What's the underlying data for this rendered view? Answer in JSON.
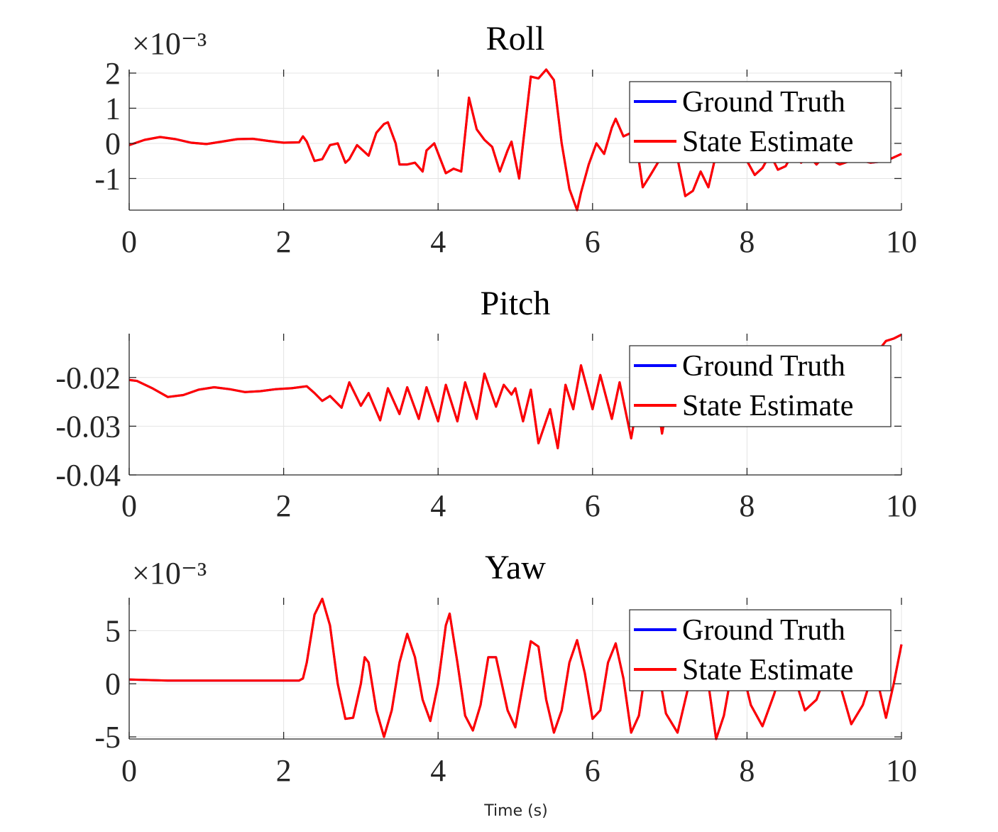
{
  "figure": {
    "xlabel": "Time (s)",
    "legend": [
      "Ground Truth",
      "State Estimate"
    ],
    "colors": {
      "ground_truth": "#0000ff",
      "state_estimate": "#ff0000",
      "axis": "#262626",
      "grid": "#e4e4e4"
    }
  },
  "chart_data": [
    {
      "type": "line",
      "title": "Roll",
      "ylabel": "",
      "exponent_label": "×10⁻³",
      "xlim": [
        0,
        10
      ],
      "ylim": [
        -1.9,
        2.1
      ],
      "xticks": [
        0,
        2,
        4,
        6,
        8,
        10
      ],
      "xtick_labels": [
        "0",
        "2",
        "4",
        "6",
        "8",
        "10"
      ],
      "yticks": [
        -1,
        0,
        1,
        2
      ],
      "ytick_labels": [
        "-1",
        "0",
        "1",
        "2"
      ],
      "grid": true,
      "legend_position": "top-right",
      "series": [
        {
          "name": "Ground Truth",
          "color": "#0000ff"
        },
        {
          "name": "State Estimate",
          "color": "#ff0000"
        }
      ],
      "x": [
        0,
        0.2,
        0.4,
        0.6,
        0.8,
        1.0,
        1.2,
        1.4,
        1.6,
        1.8,
        2.0,
        2.2,
        2.25,
        2.3,
        2.4,
        2.5,
        2.6,
        2.7,
        2.8,
        2.85,
        2.95,
        3.1,
        3.2,
        3.3,
        3.35,
        3.45,
        3.5,
        3.6,
        3.7,
        3.8,
        3.85,
        3.95,
        4.1,
        4.2,
        4.3,
        4.4,
        4.5,
        4.6,
        4.7,
        4.8,
        4.9,
        4.95,
        5.05,
        5.1,
        5.2,
        5.3,
        5.4,
        5.5,
        5.6,
        5.7,
        5.8,
        5.85,
        5.95,
        6.05,
        6.15,
        6.25,
        6.3,
        6.4,
        6.5,
        6.6,
        6.65,
        6.75,
        6.9,
        7.0,
        7.05,
        7.2,
        7.3,
        7.4,
        7.5,
        7.6,
        7.7,
        7.8,
        7.9,
        8.0,
        8.1,
        8.2,
        8.3,
        8.4,
        8.5,
        8.6,
        8.7,
        8.8,
        8.9,
        9.0,
        9.2,
        9.4,
        9.6,
        9.8,
        10.0
      ],
      "y": [
        -0.05,
        0.1,
        0.18,
        0.12,
        0.02,
        -0.02,
        0.05,
        0.12,
        0.13,
        0.07,
        0.02,
        0.03,
        0.2,
        0.05,
        -0.5,
        -0.45,
        -0.05,
        0.0,
        -0.55,
        -0.45,
        -0.05,
        -0.35,
        0.3,
        0.55,
        0.6,
        0.0,
        -0.6,
        -0.6,
        -0.55,
        -0.8,
        -0.2,
        0.0,
        -0.85,
        -0.72,
        -0.8,
        1.3,
        0.4,
        0.1,
        -0.1,
        -0.8,
        -0.2,
        0.05,
        -1.0,
        0.0,
        1.9,
        1.85,
        2.1,
        1.8,
        0.0,
        -1.3,
        -1.9,
        -1.4,
        -0.6,
        0.0,
        -0.3,
        0.45,
        0.7,
        0.2,
        0.3,
        -0.5,
        -1.25,
        -0.9,
        -0.35,
        0.3,
        0.1,
        -1.5,
        -1.35,
        -0.8,
        -1.25,
        -0.3,
        -0.1,
        0.2,
        0.1,
        -0.5,
        -0.9,
        -0.7,
        -0.3,
        -0.75,
        -0.65,
        -0.25,
        -0.55,
        -0.35,
        -0.6,
        -0.35,
        -0.6,
        -0.45,
        -0.55,
        -0.5,
        -0.3
      ]
    },
    {
      "type": "line",
      "title": "Pitch",
      "ylabel": "",
      "exponent_label": "",
      "xlim": [
        0,
        10
      ],
      "ylim": [
        -0.04,
        -0.011
      ],
      "xticks": [
        0,
        2,
        4,
        6,
        8,
        10
      ],
      "xtick_labels": [
        "0",
        "2",
        "4",
        "6",
        "8",
        "10"
      ],
      "yticks": [
        -0.04,
        -0.03,
        -0.02
      ],
      "ytick_labels": [
        "-0.04",
        "-0.03",
        "-0.02"
      ],
      "grid": true,
      "legend_position": "top-right",
      "series": [
        {
          "name": "Ground Truth",
          "color": "#0000ff"
        },
        {
          "name": "State Estimate",
          "color": "#ff0000"
        }
      ],
      "x": [
        0,
        0.1,
        0.3,
        0.5,
        0.7,
        0.9,
        1.1,
        1.3,
        1.5,
        1.7,
        1.9,
        2.1,
        2.2,
        2.3,
        2.4,
        2.5,
        2.6,
        2.75,
        2.85,
        3.0,
        3.1,
        3.25,
        3.35,
        3.5,
        3.6,
        3.75,
        3.85,
        4.0,
        4.1,
        4.25,
        4.35,
        4.5,
        4.6,
        4.75,
        4.85,
        4.95,
        5.0,
        5.1,
        5.2,
        5.3,
        5.45,
        5.55,
        5.65,
        5.75,
        5.85,
        6.0,
        6.1,
        6.25,
        6.35,
        6.5,
        6.6,
        6.7,
        6.8,
        6.9,
        7.0,
        7.1,
        7.2,
        7.3,
        7.4,
        7.5,
        7.6,
        7.7,
        7.8,
        7.9,
        8.0,
        8.1,
        8.2,
        8.3,
        8.4,
        8.5,
        8.6,
        8.7,
        8.8,
        8.9,
        9.0,
        9.1,
        9.2,
        9.3,
        9.4,
        9.5,
        9.6,
        9.7,
        9.8,
        9.9,
        10.0
      ],
      "y": [
        -0.0205,
        -0.0207,
        -0.0222,
        -0.024,
        -0.0236,
        -0.0225,
        -0.022,
        -0.0224,
        -0.023,
        -0.0228,
        -0.0224,
        -0.0222,
        -0.022,
        -0.0218,
        -0.0232,
        -0.0248,
        -0.0238,
        -0.0262,
        -0.021,
        -0.0258,
        -0.0232,
        -0.0288,
        -0.0222,
        -0.0275,
        -0.022,
        -0.0285,
        -0.022,
        -0.029,
        -0.0215,
        -0.029,
        -0.021,
        -0.0285,
        -0.0192,
        -0.026,
        -0.0215,
        -0.0235,
        -0.0222,
        -0.029,
        -0.0225,
        -0.0335,
        -0.0265,
        -0.0345,
        -0.0215,
        -0.0265,
        -0.0175,
        -0.0265,
        -0.0195,
        -0.0285,
        -0.021,
        -0.0325,
        -0.0235,
        -0.029,
        -0.021,
        -0.0315,
        -0.0225,
        -0.025,
        -0.0235,
        -0.026,
        -0.024,
        -0.025,
        -0.0225,
        -0.024,
        -0.0215,
        -0.0235,
        -0.0215,
        -0.022,
        -0.021,
        -0.0225,
        -0.0205,
        -0.0215,
        -0.0195,
        -0.0205,
        -0.0185,
        -0.0195,
        -0.0178,
        -0.0188,
        -0.016,
        -0.0172,
        -0.0148,
        -0.0158,
        -0.0138,
        -0.0145,
        -0.0125,
        -0.012,
        -0.0112
      ]
    },
    {
      "type": "line",
      "title": "Yaw",
      "ylabel": "",
      "exponent_label": "×10⁻³",
      "xlim": [
        0,
        10
      ],
      "ylim": [
        -5.2,
        8.1
      ],
      "xticks": [
        0,
        2,
        4,
        6,
        8,
        10
      ],
      "xtick_labels": [
        "0",
        "2",
        "4",
        "6",
        "8",
        "10"
      ],
      "yticks": [
        -5,
        0,
        5
      ],
      "ytick_labels": [
        "-5",
        "0",
        "5"
      ],
      "grid": true,
      "legend_position": "top-right",
      "series": [
        {
          "name": "Ground Truth",
          "color": "#0000ff"
        },
        {
          "name": "State Estimate",
          "color": "#ff0000"
        }
      ],
      "x": [
        0,
        0.5,
        1.0,
        1.5,
        2.0,
        2.2,
        2.25,
        2.3,
        2.4,
        2.5,
        2.6,
        2.7,
        2.8,
        2.9,
        3.0,
        3.05,
        3.1,
        3.2,
        3.3,
        3.4,
        3.5,
        3.6,
        3.7,
        3.8,
        3.9,
        4.0,
        4.1,
        4.15,
        4.25,
        4.35,
        4.45,
        4.55,
        4.65,
        4.75,
        4.9,
        5.0,
        5.1,
        5.2,
        5.3,
        5.4,
        5.5,
        5.6,
        5.7,
        5.8,
        5.9,
        6.0,
        6.1,
        6.2,
        6.3,
        6.4,
        6.5,
        6.6,
        6.7,
        6.8,
        6.95,
        7.1,
        7.25,
        7.4,
        7.5,
        7.6,
        7.7,
        7.8,
        7.9,
        8.05,
        8.2,
        8.35,
        8.5,
        8.6,
        8.75,
        8.9,
        9.05,
        9.2,
        9.35,
        9.5,
        9.65,
        9.8,
        9.9,
        10.0
      ],
      "y": [
        0.4,
        0.3,
        0.3,
        0.3,
        0.3,
        0.3,
        0.5,
        2.0,
        6.5,
        8.0,
        5.5,
        0.0,
        -3.3,
        -3.2,
        0.0,
        2.5,
        2.0,
        -2.5,
        -5.0,
        -2.5,
        2.0,
        4.7,
        2.5,
        -1.5,
        -3.5,
        0.0,
        5.5,
        6.6,
        2.0,
        -3.0,
        -4.4,
        -2.0,
        2.5,
        2.5,
        -2.5,
        -4.1,
        0.0,
        4.0,
        3.5,
        -1.5,
        -4.6,
        -2.5,
        2.0,
        4.1,
        1.0,
        -3.3,
        -2.5,
        2.0,
        3.8,
        0.5,
        -4.6,
        -3.0,
        2.0,
        3.5,
        -2.8,
        -4.6,
        0.0,
        3.0,
        0.0,
        -5.2,
        -3.0,
        1.0,
        2.5,
        -2.0,
        -4.0,
        -1.0,
        2.5,
        1.0,
        -2.5,
        -1.5,
        1.5,
        0.0,
        -3.8,
        -2.0,
        1.5,
        -3.2,
        0.0,
        3.7
      ]
    }
  ]
}
